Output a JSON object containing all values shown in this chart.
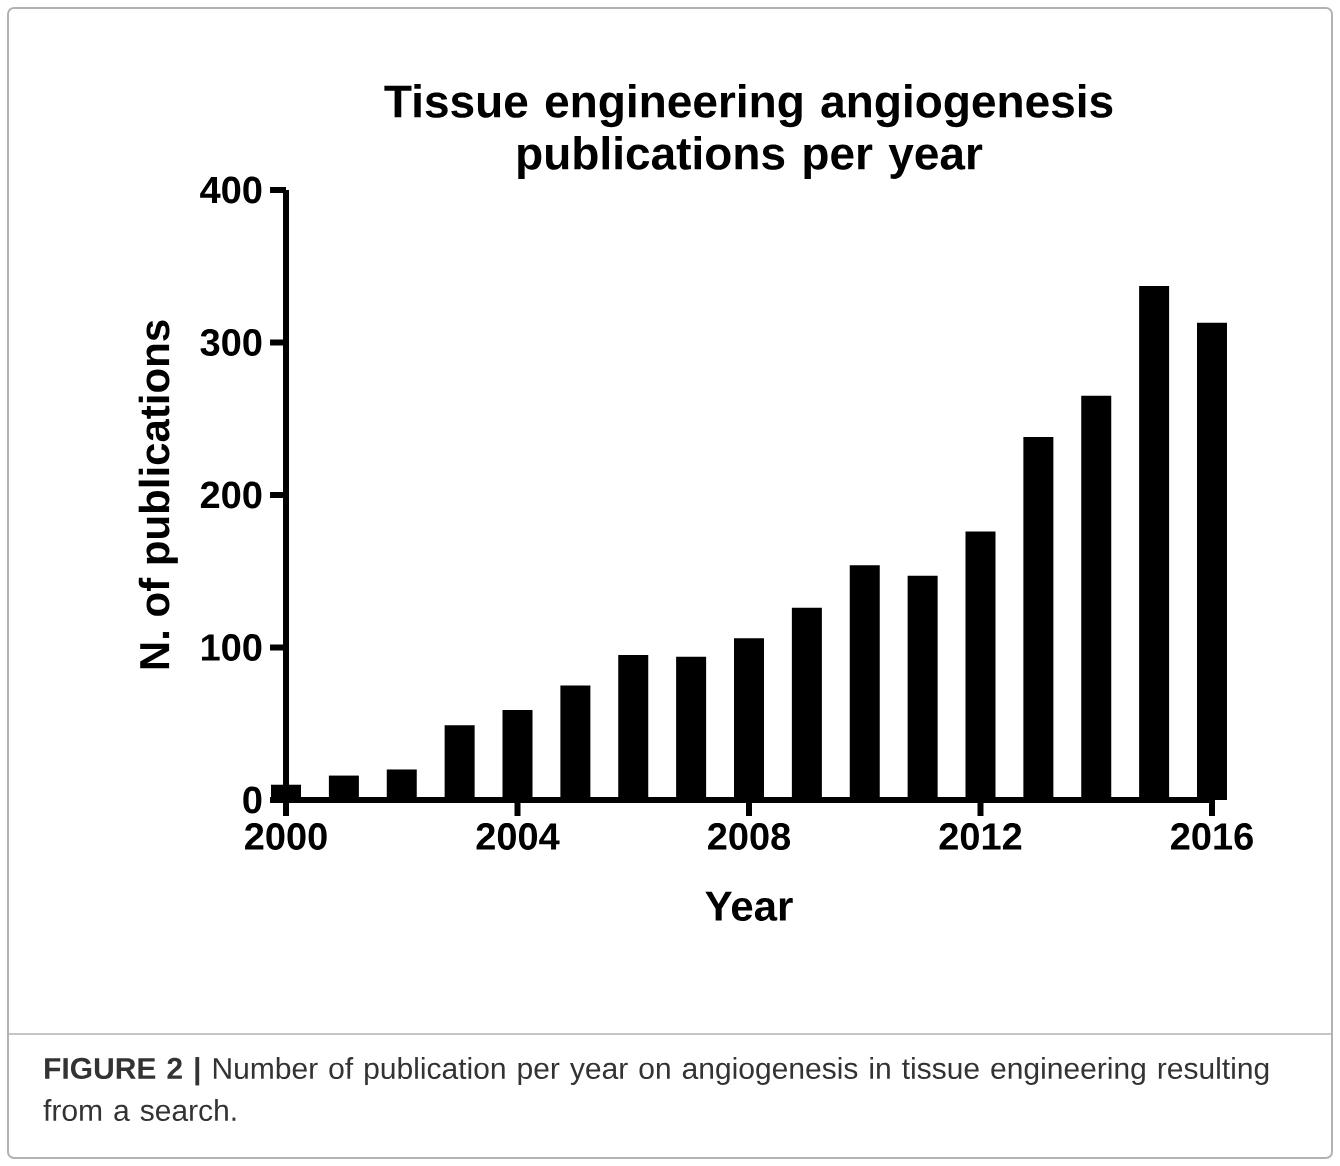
{
  "chart_data": {
    "type": "bar",
    "title": "Tissue engineering angiogenesis publications per year",
    "xlabel": "Year",
    "ylabel": "N. of publications",
    "x": [
      2000,
      2001,
      2002,
      2003,
      2004,
      2005,
      2006,
      2007,
      2008,
      2009,
      2010,
      2011,
      2012,
      2013,
      2014,
      2015,
      2016
    ],
    "values": [
      10,
      16,
      20,
      49,
      59,
      75,
      95,
      94,
      106,
      126,
      154,
      147,
      176,
      238,
      265,
      337,
      313
    ],
    "color": "#000000",
    "xlim": [
      2000,
      2016
    ],
    "xticks": [
      2000,
      2004,
      2008,
      2012,
      2016
    ],
    "ylim": [
      0,
      400
    ],
    "yticks": [
      0,
      100,
      200,
      300,
      400
    ],
    "grid": false,
    "annotations": [
      "**FIGURE 2 |** Number of publication per year on angiogenesis in tissue engineering resulting from a search."
    ]
  }
}
